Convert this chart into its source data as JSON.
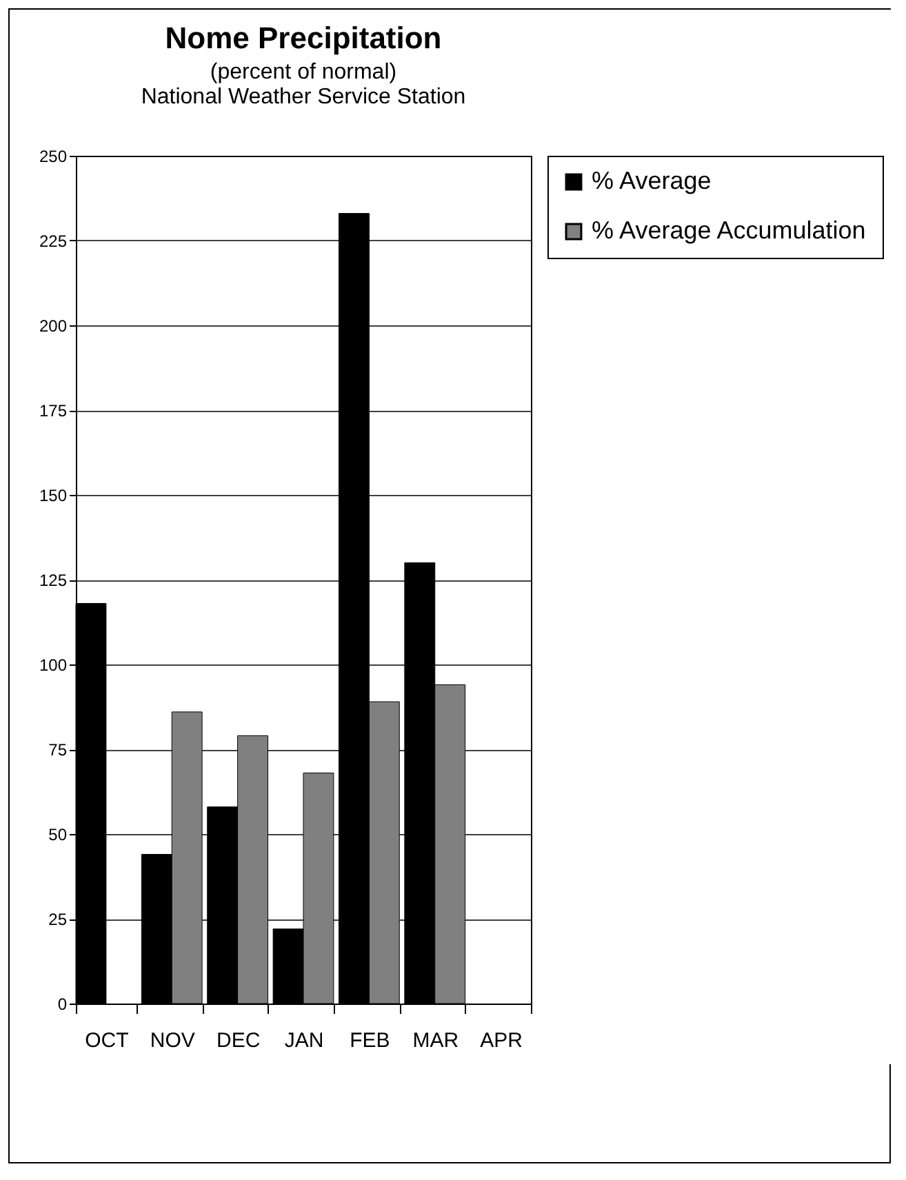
{
  "chart_data": {
    "type": "bar",
    "title": "Nome Precipitation",
    "subtitle": "(percent of normal)",
    "annotations": [
      "National Weather Service Station"
    ],
    "categories": [
      "OCT",
      "NOV",
      "DEC",
      "JAN",
      "FEB",
      "MAR",
      "APR"
    ],
    "series": [
      {
        "name": "% Average",
        "color": "#000000",
        "values": [
          118,
          44,
          58,
          22,
          233,
          130,
          null
        ]
      },
      {
        "name": "% Average Accumulation",
        "color": "#808080",
        "values": [
          null,
          86,
          79,
          68,
          89,
          94,
          null
        ]
      }
    ],
    "ylim": [
      0,
      250
    ],
    "yticks": [
      0,
      25,
      50,
      75,
      100,
      125,
      150,
      175,
      200,
      225,
      250
    ],
    "grid": "y",
    "legend": "right"
  }
}
